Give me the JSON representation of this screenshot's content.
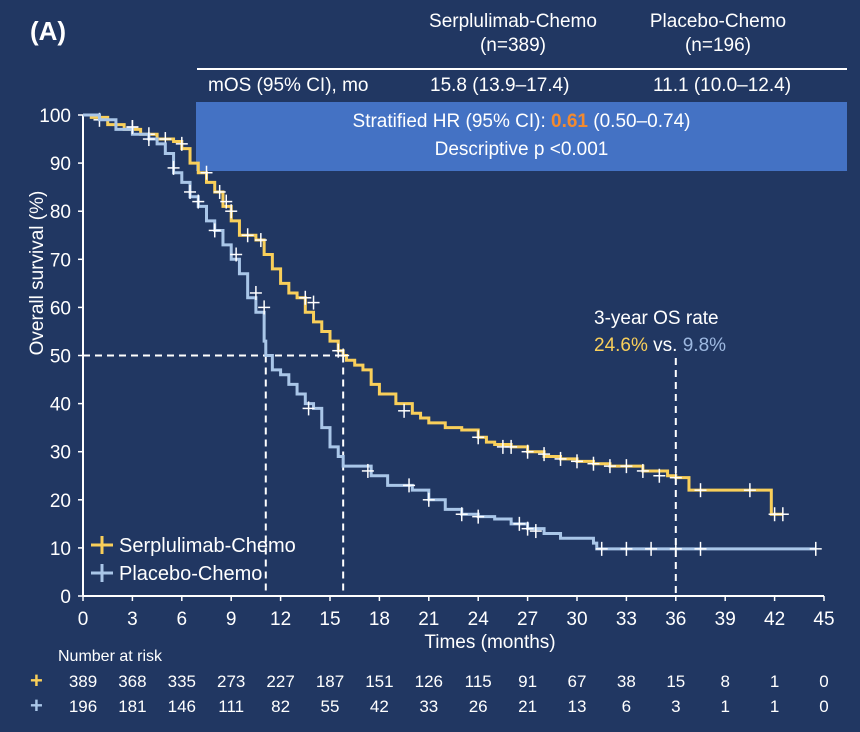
{
  "panel_label": "(A)",
  "table": {
    "columns": [
      {
        "name": "Serplulimab-Chemo",
        "n": "(n=389)"
      },
      {
        "name": "Placebo-Chemo",
        "n": "(n=196)"
      }
    ],
    "mos_label": "mOS (95% CI), mo",
    "mos_values": [
      "15.8 (13.9–17.4)",
      "11.1 (10.0–12.4)"
    ],
    "hr_prefix": "Stratified HR (95% CI): ",
    "hr_value": "0.61",
    "hr_ci": " (0.50–0.74)",
    "p_value": "Descriptive p <0.001"
  },
  "annotation": {
    "title": "3-year OS rate",
    "serp_rate": "24.6%",
    "vs": " vs. ",
    "plac_rate": "9.8%"
  },
  "colors": {
    "background": "#213762",
    "serplulimab": "#f9cf5a",
    "placebo": "#a9c6e8",
    "hr_box": "#4472c4",
    "hr_highlight": "#f28a30"
  },
  "chart_data": {
    "type": "line",
    "title": "",
    "xlabel": "Times (months)",
    "ylabel": "Overall survival (%)",
    "xlim": [
      0,
      45
    ],
    "ylim": [
      0,
      100
    ],
    "xticks": [
      0,
      3,
      6,
      9,
      12,
      15,
      18,
      21,
      24,
      27,
      30,
      33,
      36,
      39,
      42,
      45
    ],
    "yticks": [
      0,
      10,
      20,
      30,
      40,
      50,
      60,
      70,
      80,
      90,
      100
    ],
    "grid": false,
    "legend": "bottom-left",
    "median_reference": {
      "y": 50,
      "x_values": [
        11.1,
        15.8
      ]
    },
    "landmark_x": 36,
    "series": [
      {
        "name": "Serplulimab-Chemo",
        "color": "#f9cf5a",
        "points": [
          [
            0,
            100
          ],
          [
            0.5,
            99.5
          ],
          [
            1.5,
            98
          ],
          [
            2.5,
            97
          ],
          [
            3.5,
            96
          ],
          [
            4.5,
            95
          ],
          [
            5.5,
            94.5
          ],
          [
            6,
            93
          ],
          [
            6.5,
            90
          ],
          [
            7,
            88
          ],
          [
            7.5,
            86
          ],
          [
            8,
            84
          ],
          [
            8.5,
            81
          ],
          [
            9,
            78
          ],
          [
            9.5,
            75
          ],
          [
            10.5,
            74
          ],
          [
            11,
            71
          ],
          [
            11.5,
            68
          ],
          [
            12,
            65
          ],
          [
            12.5,
            63
          ],
          [
            13,
            62
          ],
          [
            13.5,
            59
          ],
          [
            14,
            57
          ],
          [
            14.5,
            55
          ],
          [
            15,
            53
          ],
          [
            15.5,
            51
          ],
          [
            15.8,
            50
          ],
          [
            16,
            49
          ],
          [
            16.5,
            48
          ],
          [
            17,
            47
          ],
          [
            17.5,
            44
          ],
          [
            18,
            42
          ],
          [
            19,
            40
          ],
          [
            20,
            38
          ],
          [
            20.5,
            37
          ],
          [
            21,
            36
          ],
          [
            22,
            35
          ],
          [
            23,
            34.5
          ],
          [
            24,
            33
          ],
          [
            24.5,
            32
          ],
          [
            25,
            31.5
          ],
          [
            26,
            31
          ],
          [
            27,
            30
          ],
          [
            28,
            29
          ],
          [
            29,
            28.5
          ],
          [
            30,
            28
          ],
          [
            31,
            27.5
          ],
          [
            32,
            27
          ],
          [
            33,
            27
          ],
          [
            34,
            26
          ],
          [
            35.5,
            25
          ],
          [
            36,
            24.6
          ],
          [
            36.8,
            22
          ],
          [
            41.5,
            22
          ],
          [
            41.8,
            17
          ],
          [
            42.5,
            17
          ]
        ],
        "censored": [
          [
            1,
            99
          ],
          [
            3,
            97.5
          ],
          [
            4,
            96
          ],
          [
            5,
            95
          ],
          [
            6,
            94
          ],
          [
            7.5,
            88
          ],
          [
            8.3,
            84
          ],
          [
            8.7,
            82
          ],
          [
            9,
            80
          ],
          [
            10,
            75
          ],
          [
            10.8,
            74
          ],
          [
            13.5,
            62
          ],
          [
            14,
            61
          ],
          [
            15.5,
            51
          ],
          [
            15.8,
            50
          ],
          [
            19.5,
            38.5
          ],
          [
            24,
            33
          ],
          [
            25.5,
            31
          ],
          [
            26,
            31
          ],
          [
            27,
            30
          ],
          [
            28,
            29.5
          ],
          [
            29,
            28.5
          ],
          [
            30,
            28
          ],
          [
            31,
            27.5
          ],
          [
            32,
            27
          ],
          [
            33,
            27
          ],
          [
            34,
            26
          ],
          [
            35,
            25
          ],
          [
            36,
            24.6
          ],
          [
            37.5,
            22
          ],
          [
            40.5,
            22
          ],
          [
            42,
            17
          ],
          [
            42.5,
            17
          ]
        ],
        "at_risk": [
          389,
          368,
          335,
          273,
          227,
          187,
          151,
          126,
          115,
          91,
          67,
          38,
          15,
          8,
          1,
          0
        ]
      },
      {
        "name": "Placebo-Chemo",
        "color": "#a9c6e8",
        "points": [
          [
            0,
            100
          ],
          [
            1,
            99
          ],
          [
            2,
            97
          ],
          [
            3,
            96
          ],
          [
            4,
            95
          ],
          [
            4.5,
            94
          ],
          [
            5,
            92
          ],
          [
            5.5,
            88
          ],
          [
            6,
            86
          ],
          [
            6.5,
            83
          ],
          [
            7,
            81
          ],
          [
            7.5,
            78
          ],
          [
            8,
            76
          ],
          [
            8.5,
            73
          ],
          [
            9,
            70
          ],
          [
            9.5,
            67
          ],
          [
            10,
            62
          ],
          [
            10.5,
            59
          ],
          [
            11,
            53
          ],
          [
            11.1,
            50
          ],
          [
            11.5,
            47
          ],
          [
            12,
            46
          ],
          [
            12.5,
            44
          ],
          [
            13,
            42
          ],
          [
            13.5,
            40
          ],
          [
            14,
            39
          ],
          [
            14.5,
            35
          ],
          [
            15,
            31
          ],
          [
            15.5,
            29
          ],
          [
            15.8,
            27
          ],
          [
            17,
            27
          ],
          [
            17.5,
            25
          ],
          [
            18.5,
            23
          ],
          [
            20,
            22
          ],
          [
            21,
            20
          ],
          [
            22,
            18
          ],
          [
            23,
            17
          ],
          [
            24,
            16.5
          ],
          [
            25,
            16
          ],
          [
            26,
            15
          ],
          [
            27,
            14
          ],
          [
            28,
            13
          ],
          [
            29,
            12
          ],
          [
            30,
            12
          ],
          [
            31,
            11
          ],
          [
            31.2,
            9.8
          ],
          [
            44.5,
            9.8
          ]
        ],
        "censored": [
          [
            3,
            97.5
          ],
          [
            4,
            95
          ],
          [
            5.5,
            89
          ],
          [
            6.5,
            84
          ],
          [
            7,
            82
          ],
          [
            8,
            76
          ],
          [
            9.3,
            71
          ],
          [
            10.5,
            63
          ],
          [
            11,
            60
          ],
          [
            13.7,
            39
          ],
          [
            17.3,
            26
          ],
          [
            19.8,
            23
          ],
          [
            21,
            20
          ],
          [
            23,
            17
          ],
          [
            24,
            16.5
          ],
          [
            26.5,
            15
          ],
          [
            27,
            14
          ],
          [
            27.5,
            13.5
          ],
          [
            31.5,
            9.8
          ],
          [
            33,
            9.8
          ],
          [
            34.5,
            9.8
          ],
          [
            36,
            9.8
          ],
          [
            37.5,
            9.8
          ],
          [
            44.5,
            9.8
          ]
        ],
        "at_risk": [
          196,
          181,
          146,
          111,
          82,
          55,
          42,
          33,
          26,
          21,
          13,
          6,
          3,
          1,
          1,
          0
        ]
      }
    ],
    "risk_table_title": "Number at risk"
  }
}
